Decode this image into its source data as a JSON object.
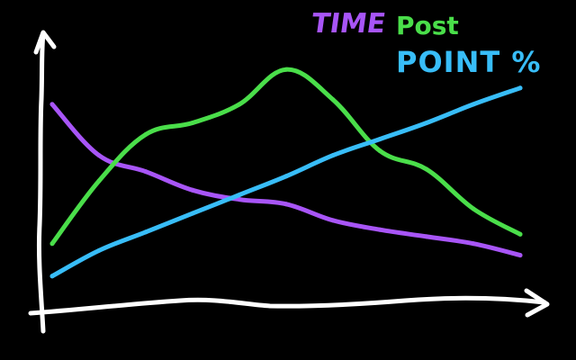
{
  "chart_data": {
    "type": "line",
    "title": "",
    "xlabel": "",
    "ylabel": "",
    "axis_color": "#ffffff",
    "background": "#000000",
    "grid": false,
    "legend_placement": "top-right",
    "x": [
      0,
      1,
      2,
      3,
      4,
      5,
      6,
      7,
      8,
      9,
      10
    ],
    "series": [
      {
        "name": "TIME",
        "color": "#a855f7",
        "values": [
          83,
          61,
          54,
          46,
          42,
          40,
          33,
          29,
          26,
          23,
          18
        ]
      },
      {
        "name": "Post",
        "color": "#4ade4a",
        "values": [
          23,
          50,
          70,
          75,
          83,
          98,
          85,
          63,
          55,
          38,
          27
        ]
      },
      {
        "name": "POINT %",
        "color": "#38bdf8",
        "values": [
          9,
          20,
          28,
          36,
          44,
          52,
          61,
          68,
          75,
          83,
          90
        ]
      }
    ]
  }
}
